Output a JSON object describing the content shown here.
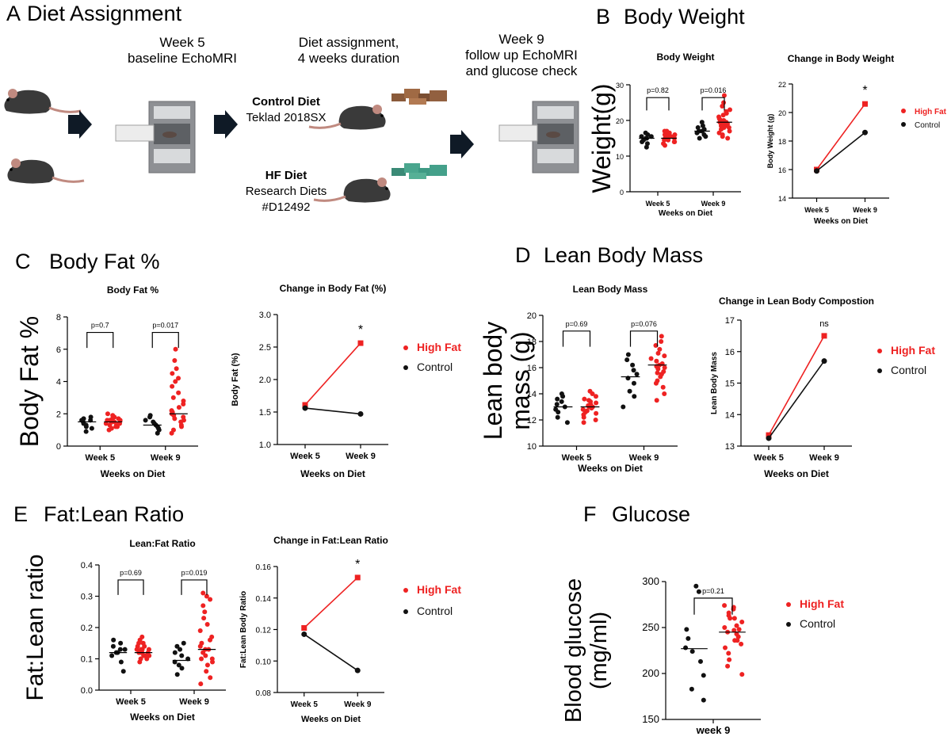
{
  "colors": {
    "high_fat": "#ee2222",
    "control": "#111111"
  },
  "panels": {
    "A": {
      "letter": "A",
      "title": "Diet Assignment",
      "step1": [
        "Week 5",
        "baseline EchoMRI"
      ],
      "step2": [
        "Diet assignment,",
        "4 weeks duration"
      ],
      "step3": [
        "Week 9",
        "follow up EchoMRI",
        "and glucose check"
      ],
      "control_diet": "Control Diet",
      "control_diet_brand": "Teklad 2018SX",
      "hf_diet": "HF Diet",
      "hf_diet_brand1": "Research Diets",
      "hf_diet_brand2": "#D12492"
    },
    "B": {
      "letter": "B",
      "title": "Body Weight"
    },
    "C": {
      "letter": "C",
      "title": "Body Fat %"
    },
    "D": {
      "letter": "D",
      "title": "Lean Body Mass"
    },
    "E": {
      "letter": "E",
      "title": "Fat:Lean Ratio"
    },
    "F": {
      "letter": "F",
      "title": "Glucose"
    }
  },
  "chart_data": [
    {
      "id": "bw_dot",
      "type": "scatter",
      "title": "Body Weight",
      "ylabel": "Weight(g)",
      "xlabel": "Weeks on Diet",
      "ylim": [
        0,
        30
      ],
      "yticks": [
        0,
        10,
        20,
        30
      ],
      "categories": [
        "Week 5",
        "Week 9"
      ],
      "pvalues": [
        "p=0.82",
        "p=0.016"
      ],
      "series": [
        {
          "name": "Control",
          "groups": [
            [
              12.5,
              13.5,
              14,
              14.5,
              15,
              15,
              15.5,
              15.5,
              16,
              16.5
            ],
            [
              15,
              15.5,
              16,
              16.5,
              17,
              17,
              17.5,
              18,
              18.5,
              19.5
            ]
          ],
          "means": [
            15,
            17
          ]
        },
        {
          "name": "High Fat",
          "groups": [
            [
              13,
              13.5,
              14,
              14,
              14.5,
              14.5,
              15,
              15,
              15,
              15.5,
              15.5,
              15.5,
              16,
              16,
              16,
              16.5,
              16.5,
              17,
              17
            ],
            [
              15,
              15.5,
              16,
              16.5,
              17,
              17.5,
              18,
              18,
              18.5,
              18.5,
              19,
              19,
              19.5,
              19.5,
              20,
              20,
              20.5,
              21,
              21.5,
              22,
              22.5,
              23,
              24,
              25,
              27
            ]
          ],
          "means": [
            15,
            19.5
          ]
        }
      ]
    },
    {
      "id": "bw_line",
      "type": "line",
      "title": "Change in Body Weight",
      "ylabel": "Body Weight (g)",
      "xlabel": "Weeks on Diet",
      "ylim": [
        14,
        22
      ],
      "yticks": [
        14,
        16,
        18,
        20,
        22
      ],
      "categories": [
        "Week 5",
        "Week 9"
      ],
      "annotation": "*",
      "series": [
        {
          "name": "High Fat",
          "values": [
            16.0,
            20.6
          ]
        },
        {
          "name": "Control",
          "values": [
            15.9,
            18.6
          ]
        }
      ]
    },
    {
      "id": "bf_dot",
      "type": "scatter",
      "title": "Body Fat %",
      "ylabel": "Body Fat %",
      "xlabel": "Weeks on Diet",
      "ylim": [
        0,
        8
      ],
      "yticks": [
        0,
        2,
        4,
        6,
        8
      ],
      "categories": [
        "Week 5",
        "Week 9"
      ],
      "pvalues": [
        "p=0.7",
        "p=0.017"
      ],
      "series": [
        {
          "name": "Control",
          "groups": [
            [
              0.9,
              1.1,
              1.2,
              1.3,
              1.4,
              1.5,
              1.6,
              1.6,
              1.7,
              1.8
            ],
            [
              0.8,
              1.0,
              1.1,
              1.2,
              1.3,
              1.4,
              1.5,
              1.6,
              1.8,
              1.9
            ]
          ],
          "means": [
            1.5,
            1.3
          ]
        },
        {
          "name": "High Fat",
          "groups": [
            [
              1.0,
              1.1,
              1.2,
              1.3,
              1.3,
              1.4,
              1.4,
              1.5,
              1.5,
              1.5,
              1.6,
              1.6,
              1.7,
              1.7,
              1.8,
              1.9,
              2.0,
              1.2,
              1.4,
              1.6
            ],
            [
              0.8,
              1.0,
              1.2,
              1.3,
              1.5,
              1.6,
              1.7,
              1.8,
              1.9,
              2.0,
              2.1,
              2.2,
              2.4,
              2.6,
              2.8,
              3.0,
              3.3,
              3.7,
              4.0,
              4.2,
              4.5,
              4.8,
              5.3,
              6.0
            ]
          ],
          "means": [
            1.5,
            2.0
          ]
        }
      ]
    },
    {
      "id": "bf_line",
      "type": "line",
      "title": "Change in Body Fat (%)",
      "ylabel": "Body Fat (%)",
      "xlabel": "Weeks on Diet",
      "ylim": [
        1.0,
        3.0
      ],
      "yticks": [
        1.0,
        1.5,
        2.0,
        2.5,
        3.0
      ],
      "categories": [
        "Week 5",
        "Week 9"
      ],
      "annotation": "*",
      "series": [
        {
          "name": "High Fat",
          "values": [
            1.61,
            2.56
          ]
        },
        {
          "name": "Control",
          "values": [
            1.56,
            1.47
          ]
        }
      ]
    },
    {
      "id": "lm_dot",
      "type": "scatter",
      "title": "Lean Body Mass",
      "ylabel": "Lean body mass (g)",
      "xlabel": "Weeks on Diet",
      "ylim": [
        10,
        20
      ],
      "yticks": [
        10,
        12,
        14,
        16,
        18,
        20
      ],
      "categories": [
        "Week 5",
        "Week 9"
      ],
      "pvalues": [
        "p=0.69",
        "p=0.076"
      ],
      "series": [
        {
          "name": "Control",
          "groups": [
            [
              11.8,
              12.2,
              12.6,
              12.8,
              13.0,
              13.2,
              13.4,
              13.6,
              13.8,
              14.0
            ],
            [
              13.0,
              13.8,
              14.2,
              14.8,
              15.2,
              15.5,
              15.8,
              16.2,
              16.6,
              17.0
            ]
          ],
          "means": [
            13.0,
            15.3
          ]
        },
        {
          "name": "High Fat",
          "groups": [
            [
              11.8,
              12.0,
              12.2,
              12.4,
              12.6,
              12.7,
              12.8,
              12.9,
              13.0,
              13.1,
              13.2,
              13.3,
              13.4,
              13.5,
              13.6,
              13.8,
              14.0,
              14.2,
              12.5,
              13.0
            ],
            [
              13.5,
              14.0,
              14.5,
              14.8,
              15.0,
              15.3,
              15.5,
              15.7,
              15.9,
              16.0,
              16.2,
              16.3,
              16.5,
              16.7,
              16.9,
              17.1,
              17.4,
              17.7,
              18.0,
              18.4,
              15.6,
              16.1
            ]
          ],
          "means": [
            13.0,
            16.2
          ]
        }
      ]
    },
    {
      "id": "lm_line",
      "type": "line",
      "title": "Change in Lean Body Compostion",
      "ylabel": "Lean Body Mass",
      "xlabel": "Weeks on Diet",
      "ylim": [
        13,
        17
      ],
      "yticks": [
        13,
        14,
        15,
        16,
        17
      ],
      "categories": [
        "Week 5",
        "Week 9"
      ],
      "annotation": "ns",
      "series": [
        {
          "name": "High Fat",
          "values": [
            13.35,
            16.5
          ]
        },
        {
          "name": "Control",
          "values": [
            13.25,
            15.7
          ]
        }
      ]
    },
    {
      "id": "fl_dot",
      "type": "scatter",
      "title": "Lean:Fat Ratio",
      "ylabel": "Fat:Lean ratio",
      "xlabel": "Weeks on Diet",
      "ylim": [
        0.0,
        0.4
      ],
      "yticks": [
        0.0,
        0.1,
        0.2,
        0.3,
        0.4
      ],
      "categories": [
        "Week 5",
        "Week 9"
      ],
      "pvalues": [
        "p=0.69",
        "p=0.019"
      ],
      "series": [
        {
          "name": "Control",
          "groups": [
            [
              0.06,
              0.09,
              0.11,
              0.12,
              0.12,
              0.13,
              0.13,
              0.14,
              0.15,
              0.16
            ],
            [
              0.05,
              0.07,
              0.08,
              0.09,
              0.1,
              0.11,
              0.12,
              0.13,
              0.14,
              0.15
            ]
          ],
          "means": [
            0.12,
            0.095
          ]
        },
        {
          "name": "High Fat",
          "groups": [
            [
              0.09,
              0.1,
              0.1,
              0.11,
              0.11,
              0.12,
              0.12,
              0.12,
              0.13,
              0.13,
              0.13,
              0.14,
              0.14,
              0.15,
              0.15,
              0.16,
              0.17,
              0.11,
              0.12,
              0.13
            ],
            [
              0.02,
              0.04,
              0.06,
              0.08,
              0.09,
              0.1,
              0.11,
              0.12,
              0.13,
              0.14,
              0.15,
              0.16,
              0.17,
              0.19,
              0.21,
              0.23,
              0.25,
              0.27,
              0.29,
              0.3,
              0.31,
              0.13,
              0.1
            ]
          ],
          "means": [
            0.12,
            0.13
          ]
        }
      ]
    },
    {
      "id": "fl_line",
      "type": "line",
      "title": "Change in Fat:Lean Ratio",
      "ylabel": "Fat:Lean Body Ratio",
      "xlabel": "Weeks on Diet",
      "ylim": [
        0.08,
        0.16
      ],
      "yticks": [
        0.08,
        0.1,
        0.12,
        0.14,
        0.16
      ],
      "categories": [
        "Week 5",
        "Week 9"
      ],
      "annotation": "*",
      "series": [
        {
          "name": "High Fat",
          "values": [
            0.121,
            0.153
          ]
        },
        {
          "name": "Control",
          "values": [
            0.117,
            0.094
          ]
        }
      ]
    },
    {
      "id": "glu_dot",
      "type": "scatter",
      "title": "",
      "ylabel": "Blood glucose (mg/ml)",
      "xlabel": "",
      "ylim": [
        150,
        300
      ],
      "yticks": [
        150,
        200,
        250,
        300
      ],
      "categories": [
        "week 9"
      ],
      "pvalues": [
        "p=0.21"
      ],
      "series": [
        {
          "name": "Control",
          "groups": [
            [
              171,
              183,
              198,
              213,
              224,
              228,
              238,
              248,
              289,
              295
            ]
          ],
          "means": [
            227
          ]
        },
        {
          "name": "High Fat",
          "groups": [
            [
              199,
              208,
              215,
              222,
              228,
              232,
              236,
              240,
              243,
              245,
              247,
              250,
              252,
              256,
              260,
              263,
              266,
              270,
              272,
              274,
              260,
              248,
              236
            ]
          ],
          "means": [
            245
          ]
        }
      ]
    }
  ]
}
